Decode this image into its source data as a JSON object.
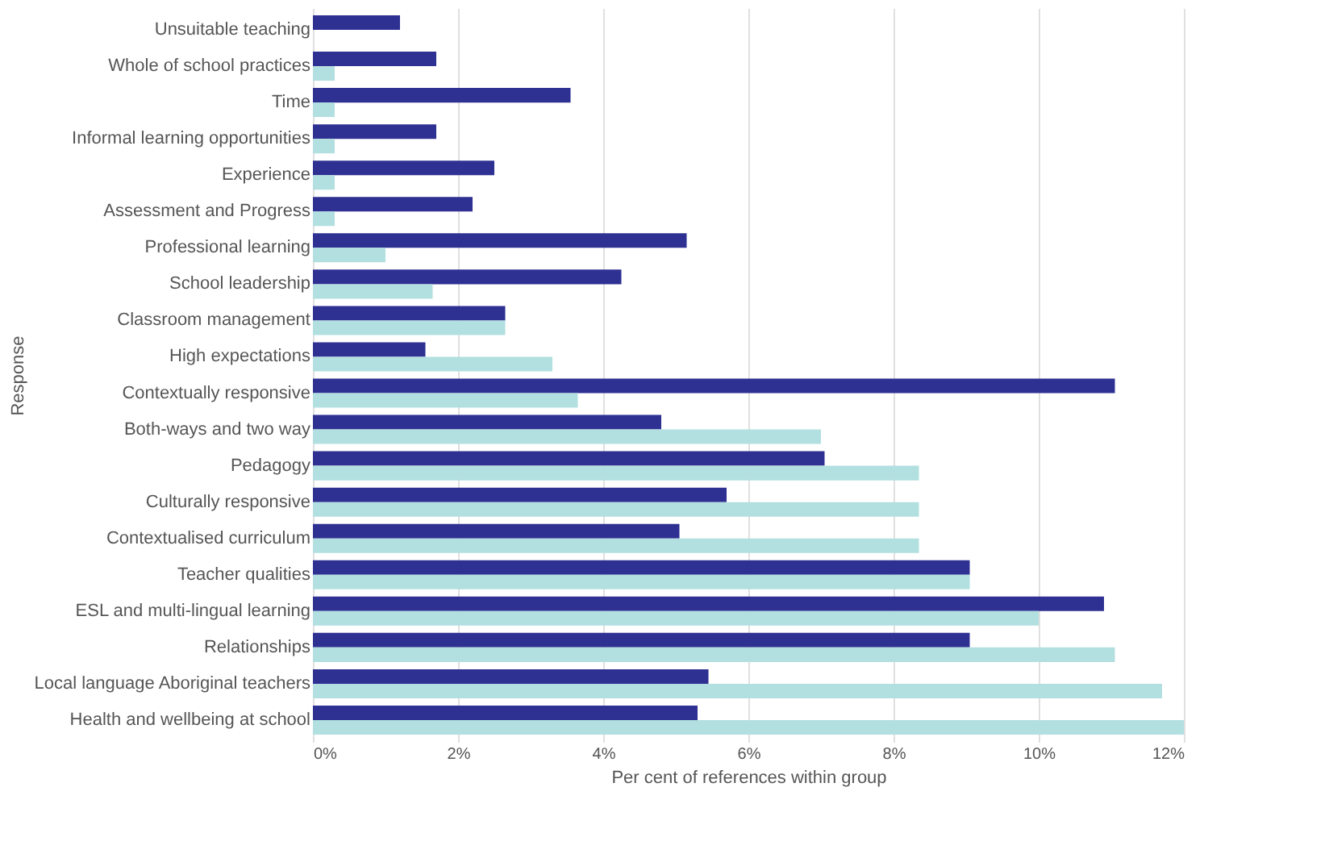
{
  "chart_data": {
    "type": "bar",
    "orientation": "horizontal",
    "xlabel": "Per cent of references  within group",
    "ylabel": "Response",
    "categories": [
      "Unsuitable teaching",
      "Whole of school practices",
      "Time",
      "Informal learning opportunities",
      "Experience",
      "Assessment and Progress",
      "Professional learning",
      "School leadership",
      "Classroom management",
      "High expectations",
      "Contextually responsive",
      "Both-ways and two way",
      "Pedagogy",
      "Culturally responsive",
      "Contextualised curriculum",
      "Teacher qualities",
      "ESL and multi-lingual learning",
      "Relationships",
      "Local language Aboriginal teachers",
      "Health and wellbeing at school"
    ],
    "series": [
      {
        "color": "#2e3192",
        "values": [
          1.2,
          1.7,
          3.55,
          1.7,
          2.5,
          2.2,
          5.15,
          4.25,
          2.65,
          1.55,
          11.05,
          4.8,
          7.05,
          5.7,
          5.05,
          9.05,
          10.9,
          9.05,
          5.45,
          5.3
        ]
      },
      {
        "color": "#b2dfe0",
        "values": [
          null,
          0.3,
          0.3,
          0.3,
          0.3,
          0.3,
          1.0,
          1.65,
          2.65,
          3.3,
          3.65,
          7.0,
          8.35,
          8.35,
          8.35,
          9.05,
          10.0,
          11.05,
          11.7,
          12.0
        ]
      }
    ],
    "xlim": [
      0,
      12
    ],
    "xticks": [
      {
        "value": 0,
        "label": "0%"
      },
      {
        "value": 2,
        "label": "2%"
      },
      {
        "value": 4,
        "label": "4%"
      },
      {
        "value": 6,
        "label": "6%"
      },
      {
        "value": 8,
        "label": "8%"
      },
      {
        "value": 10,
        "label": "10%"
      },
      {
        "value": 12,
        "label": "12%"
      }
    ],
    "grid": "x",
    "legend": false
  }
}
